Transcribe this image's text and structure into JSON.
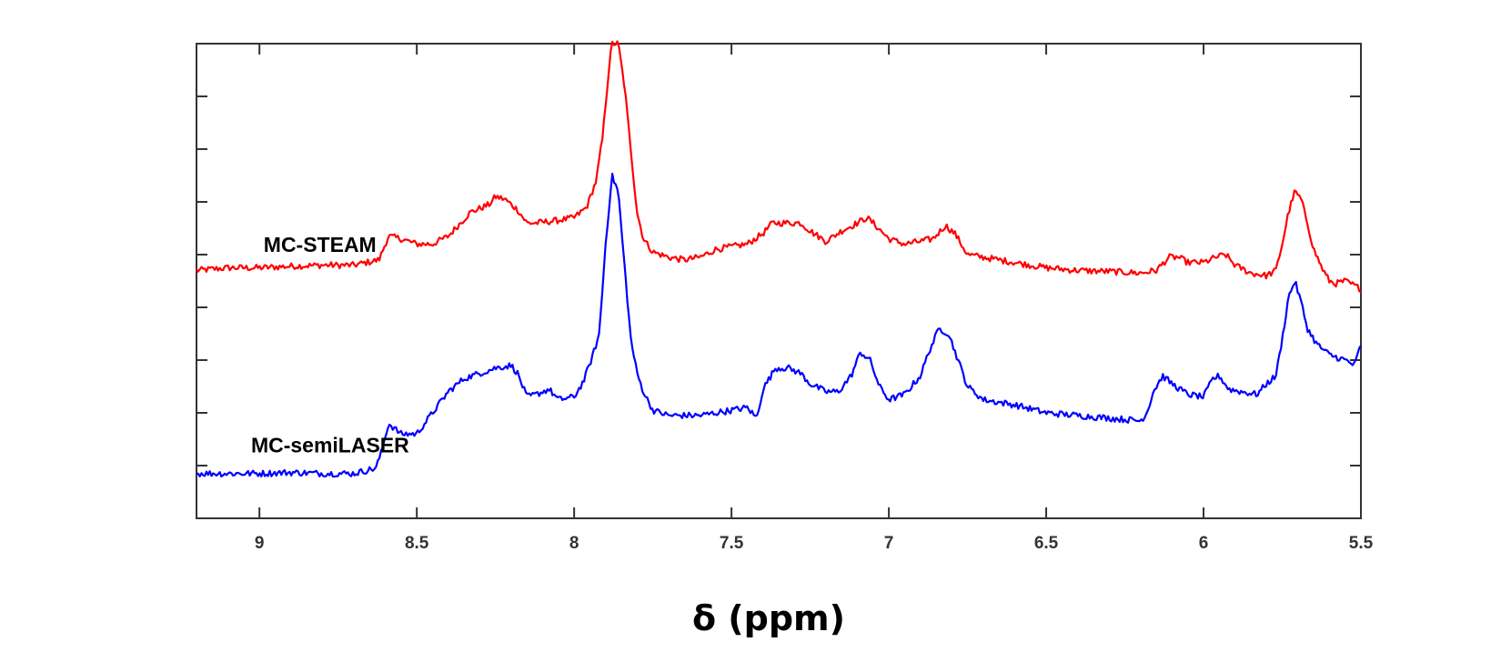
{
  "chart_data": {
    "type": "line",
    "title": "",
    "xlabel": "δ (ppm)",
    "ylabel": "",
    "x_reversed": true,
    "xlim": [
      9.2,
      5.5
    ],
    "ylim": [
      0,
      9
    ],
    "grid": false,
    "x_ticks": [
      {
        "value": 9,
        "label": "9"
      },
      {
        "value": 8.5,
        "label": "8.5"
      },
      {
        "value": 8,
        "label": "8"
      },
      {
        "value": 7.5,
        "label": "7.5"
      },
      {
        "value": 7,
        "label": "7"
      },
      {
        "value": 6.5,
        "label": "6.5"
      },
      {
        "value": 6,
        "label": "6"
      },
      {
        "value": 5.5,
        "label": "5.5"
      }
    ],
    "y_ticks": [
      1,
      2,
      3,
      4,
      5,
      6,
      7,
      8
    ],
    "series": [
      {
        "name": "MC-STEAM",
        "label_ppm": 8.9,
        "label_y": 5.05,
        "color": "#ff0000",
        "points": [
          [
            9.2,
            4.7
          ],
          [
            9.1,
            4.75
          ],
          [
            9.0,
            4.75
          ],
          [
            8.9,
            4.78
          ],
          [
            8.8,
            4.8
          ],
          [
            8.7,
            4.8
          ],
          [
            8.62,
            4.9
          ],
          [
            8.59,
            5.35
          ],
          [
            8.55,
            5.3
          ],
          [
            8.5,
            5.2
          ],
          [
            8.45,
            5.2
          ],
          [
            8.4,
            5.35
          ],
          [
            8.33,
            5.8
          ],
          [
            8.27,
            5.95
          ],
          [
            8.25,
            6.1
          ],
          [
            8.22,
            6.05
          ],
          [
            8.18,
            5.85
          ],
          [
            8.15,
            5.6
          ],
          [
            8.12,
            5.6
          ],
          [
            8.05,
            5.65
          ],
          [
            8.0,
            5.7
          ],
          [
            7.96,
            5.9
          ],
          [
            7.93,
            6.4
          ],
          [
            7.91,
            7.2
          ],
          [
            7.89,
            8.5
          ],
          [
            7.88,
            9.0
          ],
          [
            7.86,
            9.0
          ],
          [
            7.84,
            8.2
          ],
          [
            7.82,
            7.0
          ],
          [
            7.8,
            5.8
          ],
          [
            7.78,
            5.3
          ],
          [
            7.75,
            5.05
          ],
          [
            7.7,
            4.95
          ],
          [
            7.65,
            4.9
          ],
          [
            7.6,
            4.95
          ],
          [
            7.55,
            5.1
          ],
          [
            7.5,
            5.15
          ],
          [
            7.45,
            5.2
          ],
          [
            7.4,
            5.4
          ],
          [
            7.37,
            5.6
          ],
          [
            7.33,
            5.6
          ],
          [
            7.28,
            5.6
          ],
          [
            7.25,
            5.45
          ],
          [
            7.2,
            5.25
          ],
          [
            7.15,
            5.45
          ],
          [
            7.1,
            5.6
          ],
          [
            7.07,
            5.7
          ],
          [
            7.05,
            5.6
          ],
          [
            7.0,
            5.3
          ],
          [
            6.95,
            5.2
          ],
          [
            6.9,
            5.25
          ],
          [
            6.86,
            5.3
          ],
          [
            6.82,
            5.55
          ],
          [
            6.79,
            5.4
          ],
          [
            6.75,
            5.0
          ],
          [
            6.7,
            4.95
          ],
          [
            6.6,
            4.85
          ],
          [
            6.5,
            4.75
          ],
          [
            6.4,
            4.7
          ],
          [
            6.3,
            4.68
          ],
          [
            6.2,
            4.65
          ],
          [
            6.15,
            4.7
          ],
          [
            6.11,
            4.95
          ],
          [
            6.08,
            4.95
          ],
          [
            6.05,
            4.85
          ],
          [
            6.0,
            4.85
          ],
          [
            5.96,
            4.95
          ],
          [
            5.93,
            5.0
          ],
          [
            5.9,
            4.8
          ],
          [
            5.85,
            4.65
          ],
          [
            5.8,
            4.6
          ],
          [
            5.77,
            4.7
          ],
          [
            5.75,
            5.2
          ],
          [
            5.73,
            5.8
          ],
          [
            5.71,
            6.2
          ],
          [
            5.69,
            6.05
          ],
          [
            5.67,
            5.6
          ],
          [
            5.65,
            5.1
          ],
          [
            5.62,
            4.7
          ],
          [
            5.6,
            4.5
          ],
          [
            5.58,
            4.45
          ],
          [
            5.55,
            4.5
          ],
          [
            5.5,
            4.35
          ]
        ]
      },
      {
        "name": "MC-semiLASER",
        "label_ppm": 8.94,
        "label_y": 1.25,
        "color": "#0000ff",
        "points": [
          [
            9.2,
            0.85
          ],
          [
            9.1,
            0.85
          ],
          [
            9.0,
            0.85
          ],
          [
            8.9,
            0.87
          ],
          [
            8.8,
            0.85
          ],
          [
            8.7,
            0.85
          ],
          [
            8.63,
            0.95
          ],
          [
            8.61,
            1.3
          ],
          [
            8.59,
            1.8
          ],
          [
            8.55,
            1.6
          ],
          [
            8.5,
            1.6
          ],
          [
            8.45,
            2.0
          ],
          [
            8.4,
            2.4
          ],
          [
            8.35,
            2.65
          ],
          [
            8.3,
            2.75
          ],
          [
            8.25,
            2.85
          ],
          [
            8.2,
            2.9
          ],
          [
            8.18,
            2.75
          ],
          [
            8.15,
            2.3
          ],
          [
            8.12,
            2.35
          ],
          [
            8.08,
            2.45
          ],
          [
            8.05,
            2.25
          ],
          [
            8.0,
            2.3
          ],
          [
            7.97,
            2.6
          ],
          [
            7.94,
            3.1
          ],
          [
            7.92,
            3.5
          ],
          [
            7.9,
            5.2
          ],
          [
            7.88,
            6.5
          ],
          [
            7.86,
            6.2
          ],
          [
            7.84,
            4.8
          ],
          [
            7.82,
            3.4
          ],
          [
            7.8,
            2.75
          ],
          [
            7.78,
            2.4
          ],
          [
            7.75,
            2.05
          ],
          [
            7.7,
            1.95
          ],
          [
            7.6,
            1.95
          ],
          [
            7.5,
            2.05
          ],
          [
            7.45,
            2.1
          ],
          [
            7.42,
            1.9
          ],
          [
            7.4,
            2.45
          ],
          [
            7.36,
            2.85
          ],
          [
            7.32,
            2.85
          ],
          [
            7.28,
            2.75
          ],
          [
            7.25,
            2.55
          ],
          [
            7.2,
            2.4
          ],
          [
            7.16,
            2.4
          ],
          [
            7.12,
            2.7
          ],
          [
            7.09,
            3.15
          ],
          [
            7.06,
            3.0
          ],
          [
            7.03,
            2.5
          ],
          [
            7.0,
            2.25
          ],
          [
            6.95,
            2.35
          ],
          [
            6.9,
            2.7
          ],
          [
            6.87,
            3.2
          ],
          [
            6.84,
            3.6
          ],
          [
            6.81,
            3.5
          ],
          [
            6.78,
            3.0
          ],
          [
            6.75,
            2.5
          ],
          [
            6.7,
            2.25
          ],
          [
            6.6,
            2.15
          ],
          [
            6.5,
            2.0
          ],
          [
            6.4,
            1.95
          ],
          [
            6.3,
            1.9
          ],
          [
            6.2,
            1.85
          ],
          [
            6.18,
            2.0
          ],
          [
            6.16,
            2.4
          ],
          [
            6.13,
            2.7
          ],
          [
            6.1,
            2.55
          ],
          [
            6.05,
            2.35
          ],
          [
            6.0,
            2.3
          ],
          [
            5.97,
            2.65
          ],
          [
            5.95,
            2.7
          ],
          [
            5.92,
            2.45
          ],
          [
            5.88,
            2.4
          ],
          [
            5.83,
            2.35
          ],
          [
            5.8,
            2.55
          ],
          [
            5.77,
            2.7
          ],
          [
            5.75,
            3.4
          ],
          [
            5.73,
            4.2
          ],
          [
            5.71,
            4.5
          ],
          [
            5.69,
            4.1
          ],
          [
            5.67,
            3.6
          ],
          [
            5.64,
            3.3
          ],
          [
            5.6,
            3.1
          ],
          [
            5.55,
            3.0
          ],
          [
            5.52,
            2.9
          ],
          [
            5.5,
            3.3
          ]
        ]
      }
    ]
  }
}
